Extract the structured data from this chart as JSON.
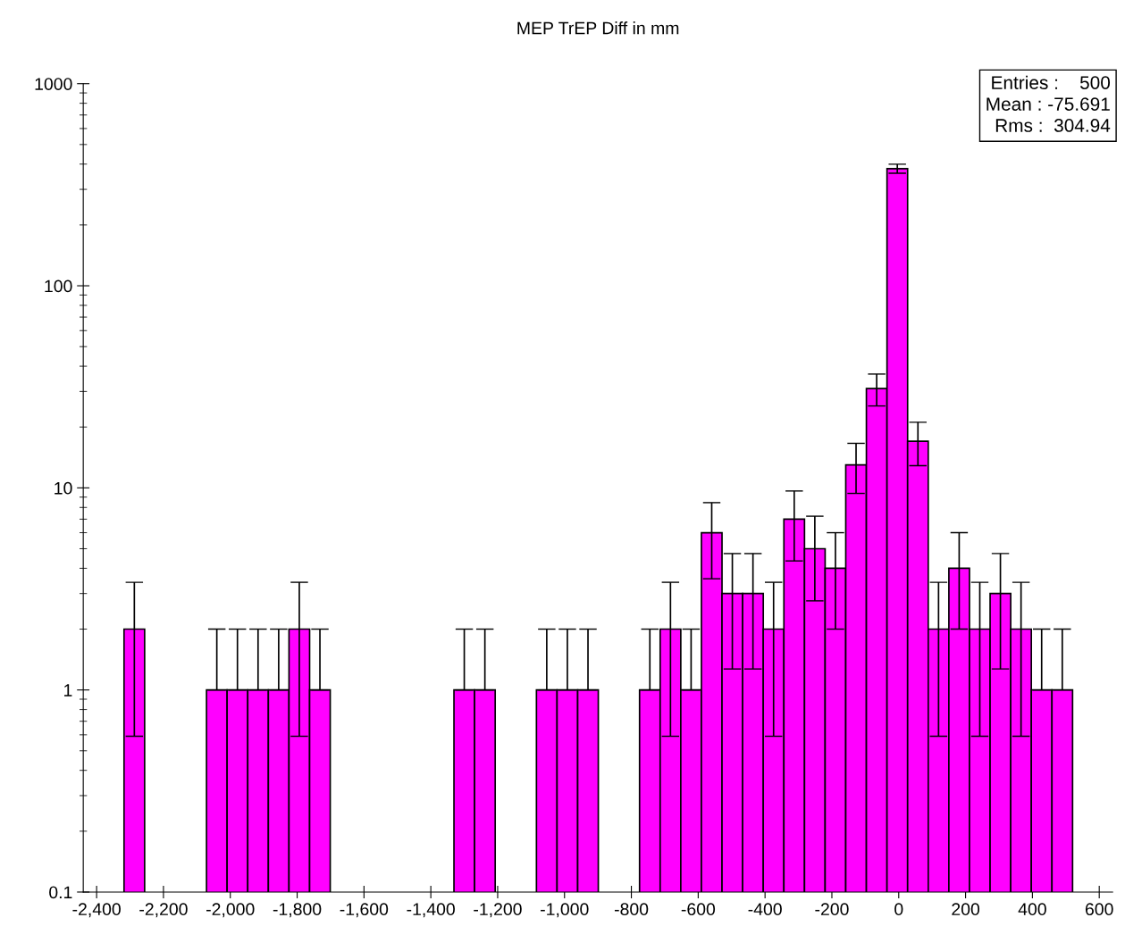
{
  "chart_data": {
    "type": "histogram",
    "title": "MEP TrEP Diff in mm",
    "bins": [
      -2318,
      -2256.3,
      -2194.6,
      -2132.9,
      -2071.2,
      -2009.5,
      -1947.8,
      -1886.1,
      -1824.4,
      -1762.7,
      -1701,
      -1639.3,
      -1577.6,
      -1515.9,
      -1454.2,
      -1392.5,
      -1330.8,
      -1269.1,
      -1207.4,
      -1145.7,
      -1084,
      -1022.3,
      -960.6,
      -898.9,
      -837.2,
      -775.5,
      -713.8,
      -652.1,
      -590.4,
      -528.7,
      -467,
      -405.3,
      -343.6,
      -281.9,
      -220.2,
      -158.5,
      -96.8,
      -35.1,
      26.6,
      88.3,
      150,
      211.7,
      273.4,
      335.1,
      396.8,
      458.5,
      520.2
    ],
    "values": [
      2,
      null,
      null,
      null,
      1,
      1,
      1,
      1,
      2,
      1,
      null,
      null,
      null,
      null,
      null,
      null,
      1,
      1,
      null,
      null,
      1,
      1,
      1,
      null,
      null,
      1,
      2,
      1,
      6,
      3,
      3,
      2,
      7,
      5,
      4,
      13,
      31,
      380,
      17,
      2,
      4,
      2,
      3,
      2,
      1,
      1
    ],
    "errors": [
      1.41,
      null,
      null,
      null,
      1,
      1,
      1,
      1,
      1.41,
      1,
      null,
      null,
      null,
      null,
      null,
      null,
      1,
      1,
      null,
      null,
      1,
      1,
      1,
      null,
      null,
      1,
      1.41,
      1,
      2.45,
      1.73,
      1.73,
      1.41,
      2.65,
      2.24,
      2,
      3.61,
      5.57,
      19.5,
      4.12,
      1.41,
      2,
      1.41,
      1.73,
      1.41,
      1,
      1
    ],
    "color": "#ff00ff",
    "log": "y",
    "grid": false,
    "legend": false,
    "xlim": [
      -2440,
      640
    ],
    "xticks": [
      {
        "value": -2400,
        "label": "-2,400"
      },
      {
        "value": -2200,
        "label": "-2,200"
      },
      {
        "value": -2000,
        "label": "-2,000"
      },
      {
        "value": -1800,
        "label": "-1,800"
      },
      {
        "value": -1600,
        "label": "-1,600"
      },
      {
        "value": -1400,
        "label": "-1,400"
      },
      {
        "value": -1200,
        "label": "-1,200"
      },
      {
        "value": -1000,
        "label": "-1,000"
      },
      -800,
      -600,
      -400,
      -200,
      0,
      200,
      400,
      600
    ],
    "ylim": [
      0.1,
      1000
    ],
    "yticks": [
      0.1,
      1,
      10,
      100,
      1000
    ],
    "annotations": [
      "Entries :    500",
      "Mean : -75.691",
      "Rms :  304.94"
    ]
  }
}
